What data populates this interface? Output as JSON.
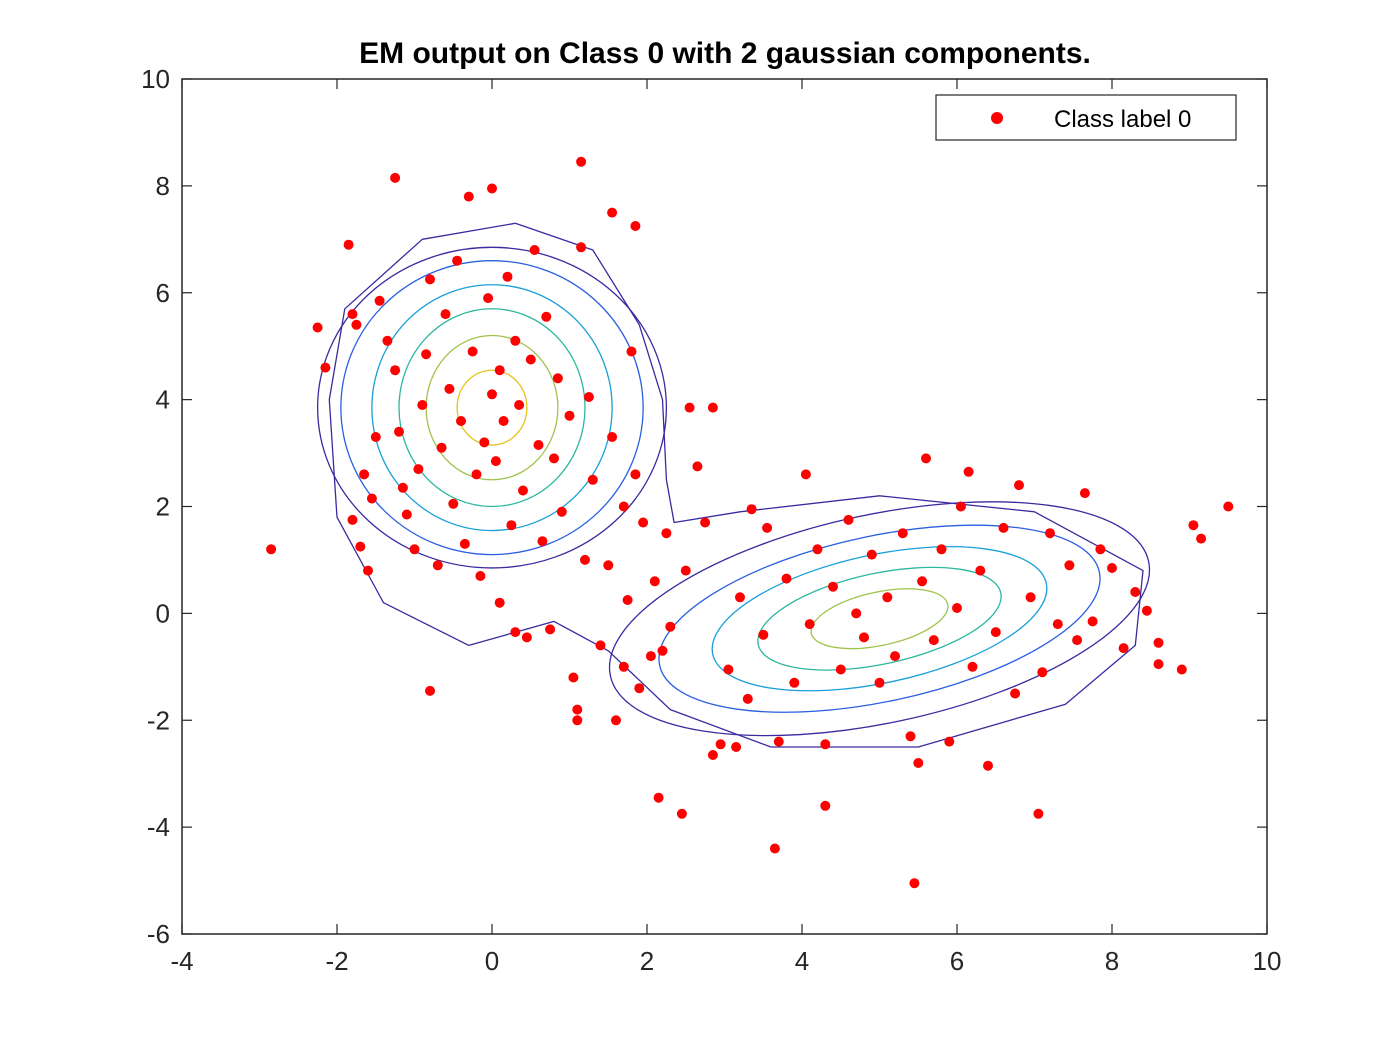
{
  "chart_data": {
    "type": "scatter",
    "title": "EM output on Class 0 with 2 gaussian components.",
    "xlabel": "",
    "ylabel": "",
    "xlim": [
      -4,
      10
    ],
    "ylim": [
      -6,
      10
    ],
    "xticks": [
      -4,
      -2,
      0,
      2,
      4,
      6,
      8,
      10
    ],
    "yticks": [
      -6,
      -4,
      -2,
      0,
      2,
      4,
      6,
      8,
      10
    ],
    "grid": false,
    "legend": {
      "placement": "top-right",
      "entries": [
        "Class label 0"
      ]
    },
    "series": [
      {
        "name": "Class label 0",
        "color": "#ff0000",
        "marker": "filled-circle",
        "points": [
          [
            -2.85,
            1.2
          ],
          [
            -2.25,
            5.35
          ],
          [
            -2.15,
            4.6
          ],
          [
            -1.85,
            6.9
          ],
          [
            -1.8,
            5.6
          ],
          [
            -1.75,
            5.4
          ],
          [
            -1.8,
            1.75
          ],
          [
            -1.7,
            1.25
          ],
          [
            -1.6,
            0.8
          ],
          [
            -1.65,
            2.6
          ],
          [
            -1.55,
            2.15
          ],
          [
            -1.5,
            3.3
          ],
          [
            -1.45,
            5.85
          ],
          [
            -1.35,
            5.1
          ],
          [
            -1.25,
            4.55
          ],
          [
            -1.2,
            3.4
          ],
          [
            -1.15,
            2.35
          ],
          [
            -1.25,
            8.15
          ],
          [
            -1.1,
            1.85
          ],
          [
            -1.0,
            1.2
          ],
          [
            -0.95,
            2.7
          ],
          [
            -0.9,
            3.9
          ],
          [
            -0.85,
            4.85
          ],
          [
            -0.8,
            6.25
          ],
          [
            -0.8,
            -1.45
          ],
          [
            -0.7,
            0.9
          ],
          [
            -0.65,
            3.1
          ],
          [
            -0.6,
            5.6
          ],
          [
            -0.55,
            4.2
          ],
          [
            -0.5,
            2.05
          ],
          [
            -0.45,
            6.6
          ],
          [
            -0.4,
            3.6
          ],
          [
            -0.35,
            1.3
          ],
          [
            -0.3,
            7.8
          ],
          [
            -0.25,
            4.9
          ],
          [
            -0.2,
            2.6
          ],
          [
            -0.15,
            0.7
          ],
          [
            -0.1,
            3.2
          ],
          [
            -0.05,
            5.9
          ],
          [
            0.0,
            4.1
          ],
          [
            0.0,
            7.95
          ],
          [
            0.05,
            2.85
          ],
          [
            0.1,
            4.55
          ],
          [
            0.1,
            0.2
          ],
          [
            0.15,
            3.6
          ],
          [
            0.2,
            6.3
          ],
          [
            0.25,
            1.65
          ],
          [
            0.3,
            5.1
          ],
          [
            0.3,
            -0.35
          ],
          [
            0.35,
            3.9
          ],
          [
            0.4,
            2.3
          ],
          [
            0.45,
            -0.45
          ],
          [
            0.5,
            4.75
          ],
          [
            0.55,
            6.8
          ],
          [
            0.6,
            3.15
          ],
          [
            0.65,
            1.35
          ],
          [
            0.7,
            5.55
          ],
          [
            0.75,
            -0.3
          ],
          [
            0.8,
            2.9
          ],
          [
            0.85,
            4.4
          ],
          [
            0.9,
            1.9
          ],
          [
            1.0,
            3.7
          ],
          [
            1.05,
            -1.2
          ],
          [
            1.1,
            -1.8
          ],
          [
            1.1,
            -2.0
          ],
          [
            1.15,
            6.85
          ],
          [
            1.15,
            8.45
          ],
          [
            1.2,
            1.0
          ],
          [
            1.25,
            4.05
          ],
          [
            1.3,
            2.5
          ],
          [
            1.4,
            -0.6
          ],
          [
            1.5,
            0.9
          ],
          [
            1.55,
            3.3
          ],
          [
            1.55,
            7.5
          ],
          [
            1.6,
            -2.0
          ],
          [
            1.7,
            -1.0
          ],
          [
            1.7,
            2.0
          ],
          [
            1.75,
            0.25
          ],
          [
            1.8,
            4.9
          ],
          [
            1.85,
            7.25
          ],
          [
            1.85,
            2.6
          ],
          [
            1.9,
            -1.4
          ],
          [
            1.95,
            1.7
          ],
          [
            2.05,
            -0.8
          ],
          [
            2.1,
            0.6
          ],
          [
            2.15,
            -3.45
          ],
          [
            2.2,
            -0.7
          ],
          [
            2.25,
            1.5
          ],
          [
            2.3,
            -0.25
          ],
          [
            2.45,
            -3.75
          ],
          [
            2.5,
            0.8
          ],
          [
            2.55,
            3.85
          ],
          [
            2.65,
            2.75
          ],
          [
            2.75,
            1.7
          ],
          [
            2.85,
            -2.65
          ],
          [
            2.85,
            3.85
          ],
          [
            2.95,
            -2.45
          ],
          [
            3.05,
            -1.05
          ],
          [
            3.15,
            -2.5
          ],
          [
            3.2,
            0.3
          ],
          [
            3.3,
            -1.6
          ],
          [
            3.35,
            1.95
          ],
          [
            3.5,
            -0.4
          ],
          [
            3.55,
            1.6
          ],
          [
            3.65,
            -4.4
          ],
          [
            3.7,
            -2.4
          ],
          [
            3.8,
            0.65
          ],
          [
            3.9,
            -1.3
          ],
          [
            4.05,
            2.6
          ],
          [
            4.1,
            -0.2
          ],
          [
            4.2,
            1.2
          ],
          [
            4.3,
            -2.45
          ],
          [
            4.3,
            -3.6
          ],
          [
            4.4,
            0.5
          ],
          [
            4.5,
            -1.05
          ],
          [
            4.6,
            1.75
          ],
          [
            4.7,
            0.0
          ],
          [
            4.8,
            -0.45
          ],
          [
            4.9,
            1.1
          ],
          [
            5.0,
            -1.3
          ],
          [
            5.1,
            0.3
          ],
          [
            5.2,
            -0.8
          ],
          [
            5.3,
            1.5
          ],
          [
            5.4,
            -2.3
          ],
          [
            5.45,
            -5.05
          ],
          [
            5.5,
            -2.8
          ],
          [
            5.55,
            0.6
          ],
          [
            5.6,
            2.9
          ],
          [
            5.7,
            -0.5
          ],
          [
            5.8,
            1.2
          ],
          [
            5.9,
            -2.4
          ],
          [
            6.0,
            0.1
          ],
          [
            6.05,
            2.0
          ],
          [
            6.15,
            2.65
          ],
          [
            6.2,
            -1.0
          ],
          [
            6.3,
            0.8
          ],
          [
            6.4,
            -2.85
          ],
          [
            6.5,
            -0.35
          ],
          [
            6.6,
            1.6
          ],
          [
            6.75,
            -1.5
          ],
          [
            6.8,
            2.4
          ],
          [
            6.95,
            0.3
          ],
          [
            7.05,
            -3.75
          ],
          [
            7.1,
            -1.1
          ],
          [
            7.2,
            1.5
          ],
          [
            7.3,
            -0.2
          ],
          [
            7.45,
            0.9
          ],
          [
            7.55,
            -0.5
          ],
          [
            7.65,
            2.25
          ],
          [
            7.75,
            -0.15
          ],
          [
            7.85,
            1.2
          ],
          [
            8.0,
            0.85
          ],
          [
            8.15,
            -0.65
          ],
          [
            8.3,
            0.4
          ],
          [
            8.45,
            0.05
          ],
          [
            8.6,
            -0.55
          ],
          [
            8.6,
            -0.95
          ],
          [
            8.9,
            -1.05
          ],
          [
            9.05,
            1.65
          ],
          [
            9.15,
            1.4
          ],
          [
            9.5,
            2.0
          ]
        ]
      }
    ],
    "contours": [
      {
        "component": 1,
        "center": [
          0.0,
          3.85
        ],
        "color_scale": [
          "#3b2aa0",
          "#2a5fe0",
          "#1a9fd8",
          "#2bb7a0",
          "#9fc34a",
          "#e8c21a"
        ]
      },
      {
        "component": 2,
        "center": [
          5.0,
          -0.1
        ],
        "color_scale": [
          "#3b2aa0",
          "#2a5fe0",
          "#1a9fd8",
          "#2bb7a0",
          "#9fc34a"
        ]
      }
    ],
    "colors": {
      "axes": "#262626",
      "marker": "#ff0000"
    }
  }
}
